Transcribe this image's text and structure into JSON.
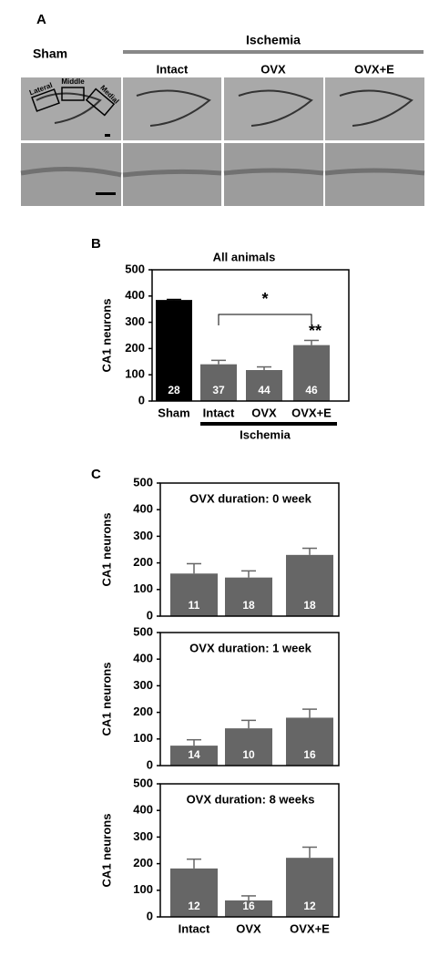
{
  "panel_a": {
    "label": "A",
    "columns": [
      "Sham",
      "Intact",
      "OVX",
      "OVX+E"
    ],
    "group": "Ischemia",
    "regions": [
      "Lateral",
      "Middle",
      "Medial"
    ]
  },
  "chart_data": [
    {
      "type": "bar",
      "panel_label": "B",
      "title": "All animals",
      "y_label": "CA1 neurons",
      "categories": [
        "Sham",
        "Intact",
        "OVX",
        "OVX+E"
      ],
      "values": [
        385,
        140,
        118,
        213
      ],
      "errors": [
        2,
        15,
        12,
        18
      ],
      "n_labels": [
        28,
        37,
        44,
        46
      ],
      "colors": [
        "#000000",
        "#666666",
        "#666666",
        "#666666"
      ],
      "group_label": "Ischemia",
      "annotations": [
        "*",
        "**"
      ],
      "ylim": [
        0,
        500
      ],
      "yticks": [
        0,
        100,
        200,
        300,
        400,
        500
      ]
    },
    {
      "type": "bar",
      "panel_label": "C",
      "title": "OVX duration: 0 week",
      "y_label": "CA1 neurons",
      "categories": [
        null,
        null,
        null
      ],
      "values": [
        160,
        145,
        230
      ],
      "errors": [
        37,
        25,
        25
      ],
      "n_labels": [
        11,
        18,
        18
      ],
      "colors": [
        "#666666",
        "#666666",
        "#666666"
      ],
      "ylim": [
        0,
        500
      ],
      "yticks": [
        0,
        100,
        200,
        300,
        400,
        500
      ]
    },
    {
      "type": "bar",
      "title": "OVX duration: 1 week",
      "y_label": "CA1 neurons",
      "categories": [
        null,
        null,
        null
      ],
      "values": [
        75,
        140,
        180
      ],
      "errors": [
        22,
        30,
        32
      ],
      "n_labels": [
        14,
        10,
        16
      ],
      "colors": [
        "#666666",
        "#666666",
        "#666666"
      ],
      "ylim": [
        0,
        500
      ],
      "yticks": [
        0,
        100,
        200,
        300,
        400,
        500
      ]
    },
    {
      "type": "bar",
      "title": "OVX duration: 8 weeks",
      "y_label": "CA1 neurons",
      "categories": [
        "Intact",
        "OVX",
        "OVX+E"
      ],
      "values": [
        182,
        62,
        222
      ],
      "errors": [
        35,
        17,
        40
      ],
      "n_labels": [
        12,
        16,
        12
      ],
      "colors": [
        "#666666",
        "#666666",
        "#666666"
      ],
      "ylim": [
        0,
        500
      ],
      "yticks": [
        0,
        100,
        200,
        300,
        400,
        500
      ]
    }
  ]
}
